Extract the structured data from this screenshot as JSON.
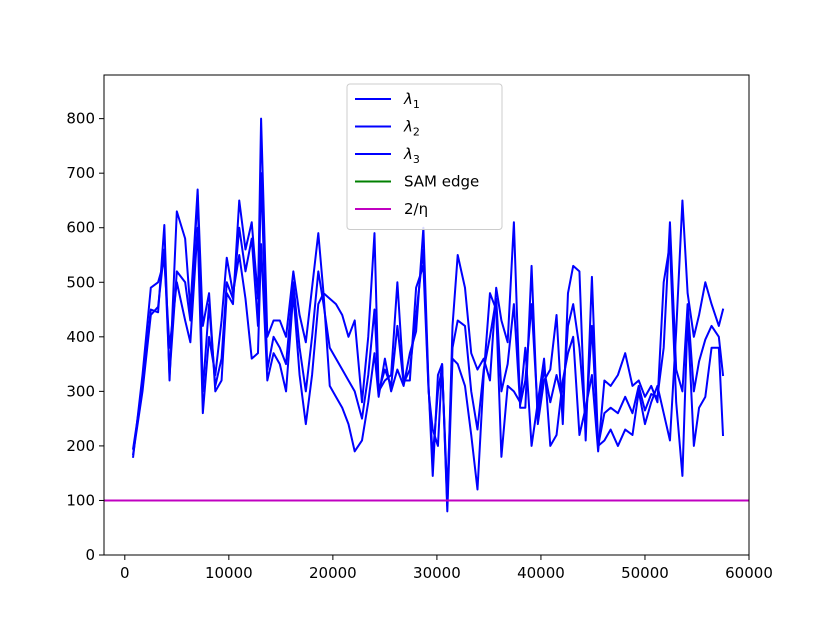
{
  "chart_data": {
    "type": "line",
    "title": "",
    "xlabel": "",
    "ylabel": "",
    "xlim": [
      -2000,
      60000
    ],
    "ylim": [
      0,
      880
    ],
    "xticks": [
      0,
      10000,
      20000,
      30000,
      40000,
      50000,
      60000
    ],
    "yticks": [
      0,
      100,
      200,
      300,
      400,
      500,
      600,
      700,
      800
    ],
    "grid": false,
    "legend_position": "top-center",
    "series": [
      {
        "name": "λ₁",
        "legend_base": "λ",
        "legend_sub": "1",
        "color": "#0000ff",
        "x": [
          800,
          1700,
          2500,
          3200,
          3800,
          4300,
          5000,
          5800,
          6300,
          7000,
          7500,
          8100,
          8700,
          9300,
          9800,
          10400,
          11000,
          11600,
          12200,
          12800,
          13100,
          13700,
          14300,
          14900,
          15500,
          16200,
          16800,
          17400,
          18000,
          18600,
          19100,
          19700,
          20300,
          20900,
          21500,
          22100,
          22800,
          23400,
          24000,
          24400,
          25000,
          25600,
          26200,
          26800,
          27400,
          28000,
          28700,
          29200,
          29600,
          30100,
          30500,
          31000,
          31500,
          32000,
          32700,
          33300,
          33900,
          34500,
          35100,
          35700,
          36200,
          36800,
          37400,
          38000,
          38500,
          39100,
          39700,
          40300,
          40900,
          41500,
          42100,
          42600,
          43100,
          43700,
          44300,
          44900,
          45500,
          46100,
          46700,
          47400,
          48100,
          48800,
          49400,
          50000,
          50600,
          51200,
          51800,
          52400,
          53000,
          53600,
          54100,
          54700,
          55200,
          55800,
          56400,
          57100,
          57500
        ],
        "y": [
          195,
          310,
          450,
          445,
          605,
          320,
          630,
          580,
          450,
          670,
          420,
          480,
          300,
          320,
          480,
          460,
          650,
          560,
          610,
          470,
          800,
          400,
          430,
          430,
          400,
          520,
          440,
          390,
          490,
          590,
          480,
          470,
          460,
          440,
          400,
          430,
          280,
          400,
          590,
          300,
          320,
          330,
          500,
          320,
          320,
          490,
          530,
          300,
          230,
          200,
          350,
          90,
          420,
          550,
          490,
          370,
          340,
          360,
          320,
          490,
          430,
          390,
          610,
          270,
          270,
          530,
          240,
          320,
          340,
          440,
          240,
          480,
          530,
          520,
          210,
          510,
          200,
          210,
          230,
          200,
          230,
          220,
          300,
          240,
          280,
          310,
          260,
          210,
          410,
          650,
          480,
          400,
          440,
          500,
          460,
          420,
          450
        ]
      },
      {
        "name": "λ₂",
        "legend_base": "λ",
        "legend_sub": "2",
        "color": "#0000ff",
        "x": [
          800,
          1700,
          2500,
          3200,
          3800,
          4300,
          5000,
          5800,
          6300,
          7000,
          7500,
          8100,
          8700,
          9300,
          9800,
          10400,
          11000,
          11600,
          12200,
          12800,
          13100,
          13700,
          14300,
          14900,
          15500,
          16200,
          16800,
          17400,
          18000,
          18600,
          19100,
          19700,
          20300,
          20900,
          21500,
          22100,
          22800,
          23400,
          24000,
          24400,
          25000,
          25600,
          26200,
          26800,
          27400,
          28000,
          28700,
          29200,
          29600,
          30100,
          30500,
          31000,
          31500,
          32000,
          32700,
          33300,
          33900,
          34500,
          35100,
          35700,
          36200,
          36800,
          37400,
          38000,
          38500,
          39100,
          39700,
          40300,
          40900,
          41500,
          42100,
          42600,
          43100,
          43700,
          44300,
          44900,
          45500,
          46100,
          46700,
          47400,
          48100,
          48800,
          49400,
          50000,
          50600,
          51200,
          51800,
          52400,
          53000,
          53600,
          54100,
          54700,
          55200,
          55800,
          56400,
          57100,
          57500
        ],
        "y": [
          180,
          330,
          490,
          500,
          540,
          380,
          500,
          430,
          390,
          600,
          260,
          400,
          330,
          430,
          545,
          480,
          550,
          470,
          360,
          370,
          570,
          320,
          370,
          350,
          300,
          480,
          330,
          240,
          330,
          460,
          480,
          310,
          290,
          270,
          240,
          190,
          210,
          280,
          370,
          290,
          360,
          300,
          340,
          310,
          370,
          410,
          600,
          310,
          145,
          330,
          350,
          80,
          360,
          350,
          310,
          220,
          120,
          330,
          480,
          450,
          180,
          310,
          300,
          280,
          380,
          200,
          280,
          360,
          200,
          220,
          320,
          370,
          400,
          220,
          270,
          330,
          190,
          320,
          310,
          330,
          370,
          310,
          320,
          290,
          310,
          280,
          500,
          570,
          280,
          145,
          440,
          200,
          270,
          290,
          380,
          380,
          220
        ]
      },
      {
        "name": "λ₃",
        "legend_base": "λ",
        "legend_sub": "3",
        "color": "#0000ff",
        "x": [
          800,
          1700,
          2500,
          3200,
          3800,
          4300,
          5000,
          5800,
          6300,
          7000,
          7500,
          8100,
          8700,
          9300,
          9800,
          10400,
          11000,
          11600,
          12200,
          12800,
          13100,
          13700,
          14300,
          14900,
          15500,
          16200,
          16800,
          17400,
          18000,
          18600,
          19100,
          19700,
          20300,
          20900,
          21500,
          22100,
          22800,
          23400,
          24000,
          24400,
          25000,
          25600,
          26200,
          26800,
          27400,
          28000,
          28700,
          29200,
          29600,
          30100,
          30500,
          31000,
          31500,
          32000,
          32700,
          33300,
          33900,
          34500,
          35100,
          35700,
          36200,
          36800,
          37400,
          38000,
          38500,
          39100,
          39700,
          40300,
          40900,
          41500,
          42100,
          42600,
          43100,
          43700,
          44300,
          44900,
          45500,
          46100,
          46700,
          47400,
          48100,
          48800,
          49400,
          50000,
          50600,
          51200,
          51800,
          52400,
          53000,
          53600,
          54100,
          54700,
          55200,
          55800,
          56400,
          57100,
          57500
        ],
        "y": [
          185,
          300,
          440,
          455,
          560,
          330,
          520,
          500,
          430,
          660,
          300,
          460,
          310,
          360,
          500,
          470,
          600,
          520,
          580,
          420,
          700,
          340,
          400,
          380,
          350,
          500,
          380,
          300,
          400,
          520,
          460,
          380,
          360,
          340,
          320,
          300,
          250,
          330,
          450,
          300,
          340,
          310,
          420,
          315,
          340,
          440,
          560,
          305,
          180,
          300,
          345,
          110,
          380,
          430,
          420,
          300,
          230,
          340,
          400,
          470,
          300,
          350,
          460,
          275,
          320,
          460,
          260,
          340,
          280,
          330,
          280,
          420,
          460,
          380,
          240,
          420,
          200,
          260,
          270,
          260,
          290,
          260,
          310,
          265,
          295,
          290,
          380,
          610,
          340,
          300,
          460,
          300,
          355,
          395,
          420,
          400,
          330
        ]
      },
      {
        "name": "SAM edge",
        "color": "#008000",
        "x": [
          -2000,
          60000
        ],
        "y": [
          100,
          100
        ]
      },
      {
        "name": "2/η",
        "color": "#c000c0",
        "x": [
          -2000,
          60000
        ],
        "y": [
          100,
          100
        ]
      }
    ]
  }
}
